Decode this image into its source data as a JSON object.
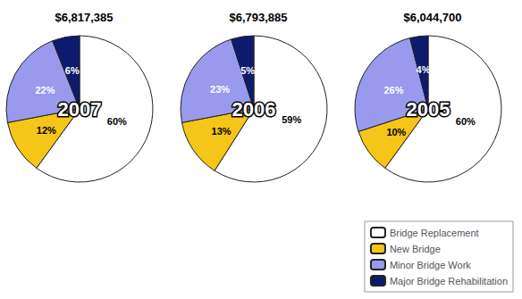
{
  "chart_data": [
    {
      "type": "pie",
      "title": "$6,817,385",
      "categories": [
        "Bridge Replacement",
        "New Bridge",
        "Minor Bridge Work",
        "Major Bridge Rehabilitation"
      ],
      "values": [
        60,
        12,
        22,
        6
      ],
      "value_labels": [
        "60%",
        "12%",
        "22%",
        "6%"
      ],
      "colors": [
        "#FFFFFF",
        "#F5C518",
        "#9999EE",
        "#0D1B6E"
      ],
      "annotations": [
        "2007"
      ],
      "data_labels": true,
      "legend": "lower right"
    },
    {
      "type": "pie",
      "title": "$6,793,885",
      "categories": [
        "Bridge Replacement",
        "New Bridge",
        "Minor Bridge Work",
        "Major Bridge Rehabilitation"
      ],
      "values": [
        59,
        13,
        23,
        5
      ],
      "value_labels": [
        "59%",
        "13%",
        "23%",
        "5%"
      ],
      "colors": [
        "#FFFFFF",
        "#F5C518",
        "#9999EE",
        "#0D1B6E"
      ],
      "annotations": [
        "2006"
      ],
      "data_labels": true,
      "legend": "lower right"
    },
    {
      "type": "pie",
      "title": "$6,044,700",
      "categories": [
        "Bridge Replacement",
        "New Bridge",
        "Minor Bridge Work",
        "Major Bridge Rehabilitation"
      ],
      "values": [
        60,
        10,
        26,
        4
      ],
      "value_labels": [
        "60%",
        "10%",
        "26%",
        "4%"
      ],
      "colors": [
        "#FFFFFF",
        "#F5C518",
        "#9999EE",
        "#0D1B6E"
      ],
      "annotations": [
        "2005"
      ],
      "data_labels": true,
      "legend": "lower right"
    }
  ]
}
